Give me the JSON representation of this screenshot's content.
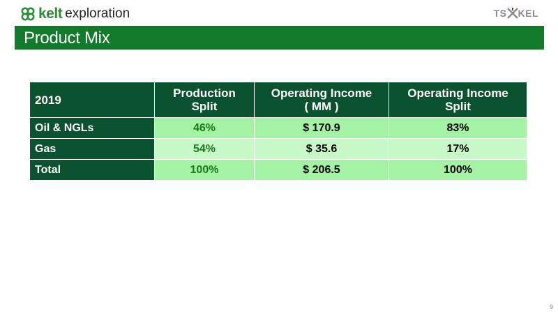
{
  "header": {
    "logo_bold": "kelt",
    "logo_text": "exploration",
    "ticker_left": "TS",
    "ticker_right": "KEL"
  },
  "slide": {
    "title": "Product Mix",
    "page_number": "9"
  },
  "table": {
    "headers": [
      "2019",
      "Production Split",
      "Operating Income\n( MM )",
      "Operating Income Split"
    ],
    "rows": [
      {
        "label": "Oil & NGLs",
        "production_split": "46%",
        "operating_income": "$ 170.9",
        "operating_income_split": "83%"
      },
      {
        "label": "Gas",
        "production_split": "54%",
        "operating_income": "$ 35.6",
        "operating_income_split": "17%"
      },
      {
        "label": "Total",
        "production_split": "100%",
        "operating_income": "$ 206.5",
        "operating_income_split": "100%"
      }
    ]
  },
  "colors": {
    "brand_green": "#127a2b",
    "header_cell": "#0a5230",
    "value_cell": "#a4f2a4",
    "value_cell_light": "#c8fac8"
  }
}
